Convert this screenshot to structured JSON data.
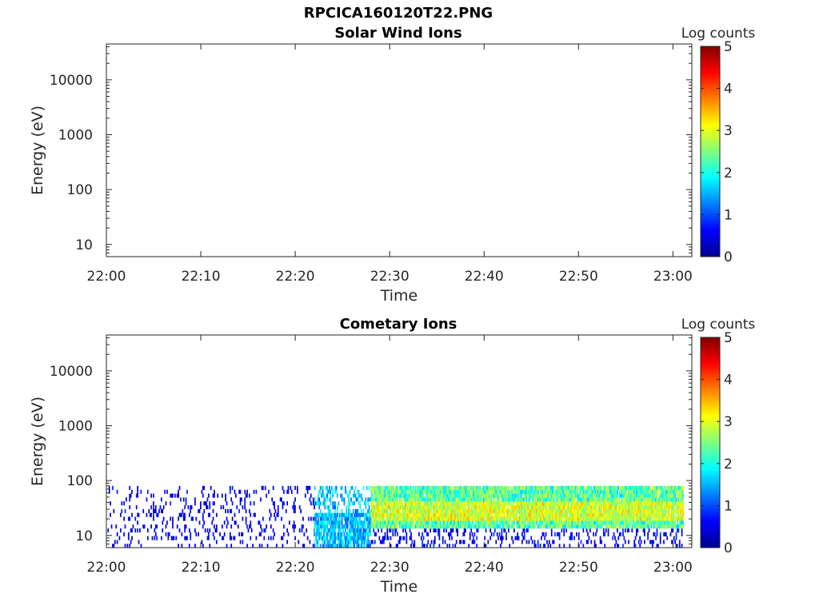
{
  "figure": {
    "title": "RPCICA160120T22.PNG"
  },
  "colorbar_colors": [
    "#00008f",
    "#0000ff",
    "#0080ff",
    "#00ffff",
    "#80ff80",
    "#ffff00",
    "#ff8000",
    "#ff0000",
    "#800000"
  ],
  "chart_data": [
    {
      "type": "heatmap",
      "title": "Solar Wind Ions",
      "xlabel": "Time",
      "ylabel": "Energy (eV)",
      "yscale": "log",
      "ylim": [
        6,
        45000
      ],
      "y_ticks": [
        10,
        100,
        1000,
        10000
      ],
      "y_tick_labels": [
        "10",
        "100",
        "1000",
        "10000"
      ],
      "x_ticks": [
        "22:00",
        "22:10",
        "22:20",
        "22:30",
        "22:40",
        "22:50",
        "23:00"
      ],
      "xlim_minutes": [
        0,
        62
      ],
      "colorbar": {
        "label": "Log counts",
        "range": [
          0,
          5
        ],
        "ticks": [
          "0",
          "1",
          "2",
          "3",
          "4",
          "5"
        ]
      },
      "data": []
    },
    {
      "type": "heatmap",
      "title": "Cometary Ions",
      "xlabel": "Time",
      "ylabel": "Energy (eV)",
      "yscale": "log",
      "ylim": [
        6,
        45000
      ],
      "y_ticks": [
        10,
        100,
        1000,
        10000
      ],
      "y_tick_labels": [
        "10",
        "100",
        "1000",
        "10000"
      ],
      "x_ticks": [
        "22:00",
        "22:10",
        "22:20",
        "22:30",
        "22:40",
        "22:50",
        "23:00"
      ],
      "xlim_minutes": [
        0,
        62
      ],
      "colorbar": {
        "label": "Log counts",
        "range": [
          0,
          5
        ],
        "ticks": [
          "0",
          "1",
          "2",
          "3",
          "4",
          "5"
        ]
      },
      "energy_range_eV": [
        6,
        80
      ],
      "segments": [
        {
          "time": [
            "22:00",
            "22:08"
          ],
          "energy_eV": [
            6,
            80
          ],
          "log_counts": [
            0,
            1
          ],
          "coverage": "sparse"
        },
        {
          "time": [
            "22:08",
            "22:18"
          ],
          "energy_eV": [
            6,
            80
          ],
          "log_counts": [
            0,
            1
          ],
          "coverage": "scattered"
        },
        {
          "time": [
            "22:18",
            "22:22"
          ],
          "energy_eV": [
            6,
            80
          ],
          "log_counts": [
            0,
            1
          ],
          "coverage": "scattered"
        },
        {
          "time": [
            "22:22",
            "22:28"
          ],
          "energy_eV": [
            6,
            80
          ],
          "log_counts": [
            0.5,
            2.5
          ],
          "coverage": "partial"
        },
        {
          "time": [
            "22:28",
            "23:01"
          ],
          "energy_eV": [
            6,
            80
          ],
          "log_counts": [
            1,
            3.5
          ],
          "coverage": "continuous",
          "peak_band_eV": [
            20,
            40
          ]
        }
      ]
    }
  ]
}
